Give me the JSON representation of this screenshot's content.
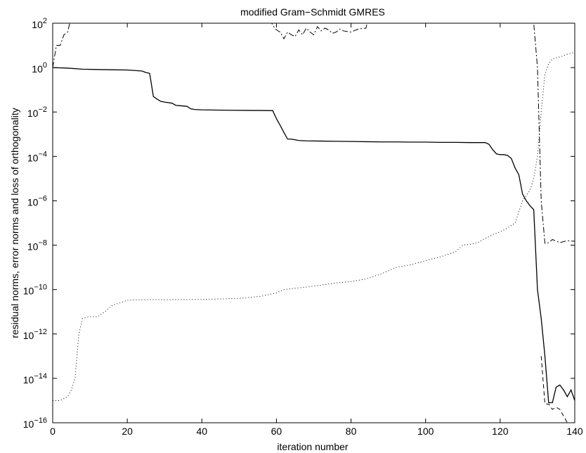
{
  "chart_data": {
    "type": "line",
    "title": "modified Gram−Schmidt GMRES",
    "xlabel": "iteration number",
    "ylabel": "residual norms, error norms and loss of orthogonality",
    "xlim": [
      0,
      140
    ],
    "ylim": [
      1e-16,
      100
    ],
    "yscale": "log",
    "grid": false,
    "x_ticks": [
      0,
      20,
      40,
      60,
      80,
      100,
      120,
      140
    ],
    "y_ticks": [
      {
        "base": "10",
        "exp": "2"
      },
      {
        "base": "10",
        "exp": "0"
      },
      {
        "base": "10",
        "exp": "−2"
      },
      {
        "base": "10",
        "exp": "−4"
      },
      {
        "base": "10",
        "exp": "−6"
      },
      {
        "base": "10",
        "exp": "−8"
      },
      {
        "base": "10",
        "exp": "−10"
      },
      {
        "base": "10",
        "exp": "−12"
      },
      {
        "base": "10",
        "exp": "−14"
      },
      {
        "base": "10",
        "exp": "−16"
      }
    ],
    "series": [
      {
        "style": "solid",
        "color": "#000000",
        "x": [
          0,
          4,
          8,
          12,
          16,
          20,
          24,
          25,
          26,
          27,
          28,
          29,
          30,
          32,
          33,
          36,
          37,
          38,
          40,
          44,
          48,
          52,
          56,
          58,
          59,
          60,
          61,
          62,
          63,
          64,
          66,
          68,
          72,
          76,
          80,
          84,
          88,
          92,
          96,
          100,
          104,
          108,
          112,
          116,
          117,
          118,
          119,
          120,
          121,
          122,
          123,
          124,
          125,
          126,
          127,
          128,
          129,
          130,
          131,
          132,
          133,
          134,
          135,
          136,
          137,
          138,
          139,
          140
        ],
        "y": [
          1.0,
          0.95,
          0.85,
          0.82,
          0.8,
          0.78,
          0.7,
          0.6,
          0.55,
          0.05,
          0.038,
          0.03,
          0.028,
          0.025,
          0.02,
          0.018,
          0.014,
          0.013,
          0.0125,
          0.0122,
          0.012,
          0.0118,
          0.0117,
          0.0116,
          0.0115,
          0.005,
          0.0025,
          0.0012,
          0.0006,
          0.0006,
          0.00052,
          0.0005,
          0.00049,
          0.00048,
          0.00047,
          0.00046,
          0.00045,
          0.00045,
          0.00044,
          0.00044,
          0.00043,
          0.00043,
          0.00042,
          0.00042,
          0.00035,
          0.0002,
          0.00013,
          0.00012,
          0.00012,
          0.00011,
          8e-05,
          3e-05,
          1.5e-05,
          2e-06,
          1e-06,
          6e-07,
          4e-07,
          1e-10,
          5e-12,
          1e-13,
          8e-16,
          8e-16,
          4e-15,
          5e-15,
          3e-15,
          1.5e-15,
          3e-15,
          1e-15
        ]
      },
      {
        "style": "dashdot",
        "color": "#000000",
        "x": [
          0,
          1,
          2,
          3,
          4,
          5,
          58,
          59,
          60,
          61,
          62,
          63,
          64,
          65,
          66,
          67,
          68,
          69,
          70,
          71,
          72,
          73,
          74,
          75,
          76,
          77,
          78,
          80,
          82,
          84,
          85,
          128,
          129,
          130,
          131,
          132,
          133,
          134,
          136,
          138,
          140
        ],
        "y": [
          1.0,
          10,
          10,
          30,
          40,
          200,
          200,
          80,
          50,
          40,
          20,
          40,
          30,
          25,
          50,
          30,
          60,
          40,
          30,
          70,
          45,
          60,
          50,
          35,
          40,
          55,
          45,
          40,
          55,
          60,
          300,
          300,
          100,
          1,
          1e-06,
          1.2e-08,
          1.3e-08,
          1.8e-08,
          1.3e-08,
          1.6e-08,
          1.5e-08
        ]
      },
      {
        "style": "dashed",
        "color": "#000000",
        "x": [
          131,
          132,
          133,
          134,
          135,
          136,
          137,
          138
        ],
        "y": [
          1e-13,
          7e-16,
          7e-16,
          4e-16,
          5e-16,
          4e-16,
          2e-16,
          1e-16
        ]
      },
      {
        "style": "dotted",
        "color": "#000000",
        "x": [
          0,
          2,
          4,
          5,
          6,
          7,
          8,
          10,
          12,
          14,
          16,
          18,
          20,
          24,
          30,
          40,
          50,
          56,
          58,
          60,
          62,
          64,
          68,
          72,
          76,
          80,
          84,
          88,
          92,
          96,
          100,
          104,
          108,
          110,
          112,
          114,
          116,
          118,
          120,
          122,
          124,
          126,
          128,
          129,
          130,
          131,
          132,
          133,
          134,
          136,
          138,
          140
        ],
        "y": [
          1e-15,
          1e-15,
          1.5e-15,
          3e-15,
          1e-14,
          1e-12,
          5e-12,
          6e-12,
          6e-12,
          1e-11,
          2e-11,
          2.5e-11,
          3.3e-11,
          3.5e-11,
          3.5e-11,
          3.6e-11,
          4e-11,
          5e-11,
          6e-11,
          7e-11,
          1e-10,
          1.1e-10,
          1.3e-10,
          1.6e-10,
          2e-10,
          2.3e-10,
          3e-10,
          5e-10,
          1e-09,
          1.3e-09,
          2e-09,
          3e-09,
          5e-09,
          1e-08,
          1.1e-08,
          1.3e-08,
          2e-08,
          3e-08,
          4e-08,
          6e-08,
          1e-07,
          1e-06,
          3e-06,
          1e-05,
          0.0001,
          0.01,
          0.5,
          1.5,
          2.5,
          3,
          4,
          5
        ]
      }
    ]
  }
}
